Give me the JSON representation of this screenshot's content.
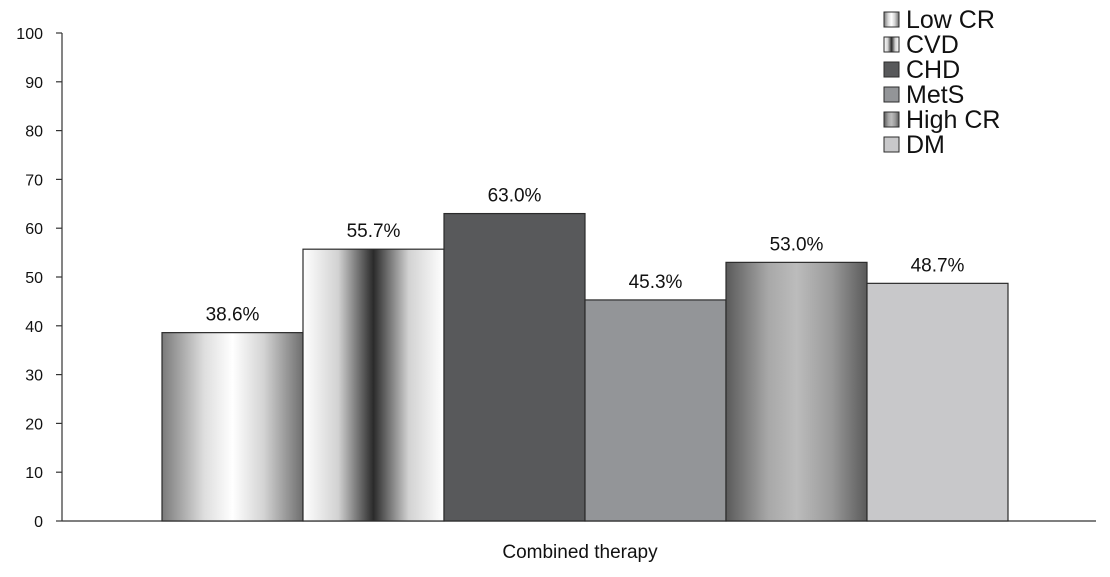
{
  "chart_data": {
    "type": "bar",
    "title": "",
    "xlabel": "Combined therapy",
    "ylabel": "",
    "ylim": [
      0,
      100
    ],
    "yticks": [
      "0",
      "10",
      "20",
      "30",
      "40",
      "50",
      "60",
      "70",
      "80",
      "90",
      "100"
    ],
    "categories": [
      "Combined therapy"
    ],
    "grid": false,
    "legend_position": "top-right",
    "series": [
      {
        "name": "Low CR",
        "values": [
          38.6
        ],
        "label": "38.6%",
        "color": "#bdbdbd",
        "fill": "cylinder-light"
      },
      {
        "name": "CVD",
        "values": [
          55.7
        ],
        "label": "55.7%",
        "color": "#f2f2f2",
        "fill": "cylinder-dark-center"
      },
      {
        "name": "CHD",
        "values": [
          63.0
        ],
        "label": "63.0%",
        "color": "#58595b",
        "fill": "solid"
      },
      {
        "name": "MetS",
        "values": [
          45.3
        ],
        "label": "45.3%",
        "color": "#939598",
        "fill": "solid"
      },
      {
        "name": "High CR",
        "values": [
          53.0
        ],
        "label": "53.0%",
        "color": "#8a8a8a",
        "fill": "cylinder-gray"
      },
      {
        "name": "DM",
        "values": [
          48.7
        ],
        "label": "48.7%",
        "color": "#c8c8ca",
        "fill": "solid"
      }
    ],
    "legend_order": [
      "Low CR",
      "CVD",
      "CHD",
      "MetS",
      "High CR",
      "DM"
    ]
  }
}
